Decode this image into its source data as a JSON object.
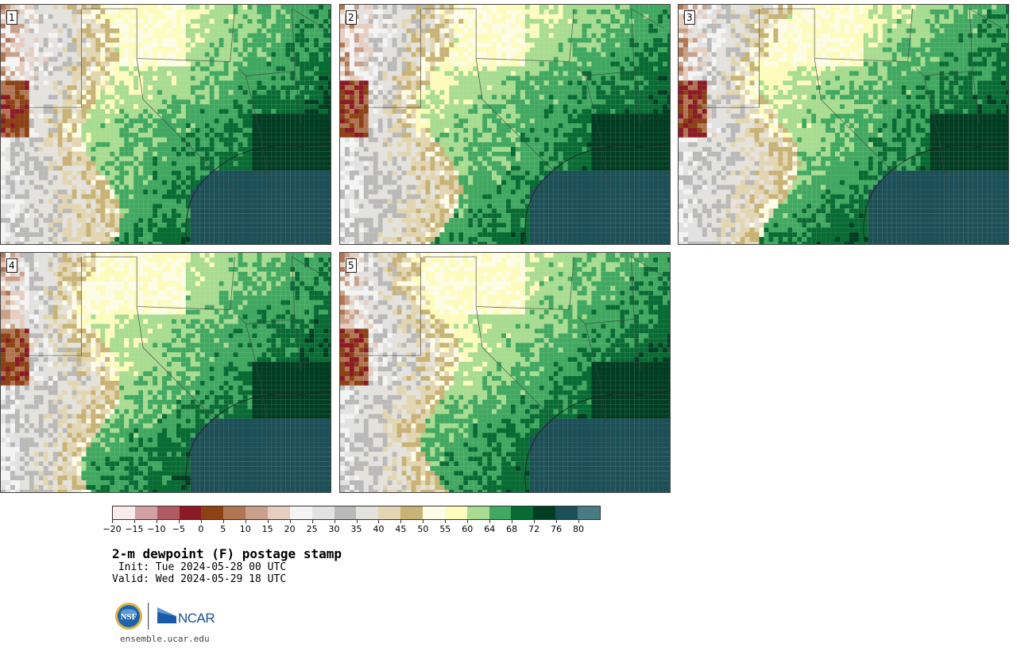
{
  "panels": [
    {
      "label": "1"
    },
    {
      "label": "2"
    },
    {
      "label": "3"
    },
    {
      "label": "4"
    },
    {
      "label": "5"
    }
  ],
  "colorbar": {
    "colors": [
      "#f7ebeb",
      "#d1a1a4",
      "#b05b63",
      "#8c1a26",
      "#8c4214",
      "#b07654",
      "#c9a08a",
      "#e6cdbf",
      "#f4f4f4",
      "#e2e2e2",
      "#b9b9b9",
      "#e4e2dc",
      "#e2d5b1",
      "#c8b276",
      "#fdfce7",
      "#fdfcbc",
      "#a8dc91",
      "#41a861",
      "#086b34",
      "#013d23",
      "#1d4f58",
      "#497b82"
    ],
    "tick_labels": [
      "−20",
      "−15",
      "−10",
      "−5",
      "0",
      "5",
      "10",
      "15",
      "20",
      "25",
      "30",
      "35",
      "40",
      "45",
      "50",
      "55",
      "60",
      "64",
      "68",
      "72",
      "76",
      "80"
    ]
  },
  "title": "2-m dewpoint (F) postage stamp",
  "init": " Init: Tue 2024-05-28 00 UTC",
  "valid": "Valid: Wed 2024-05-29 18 UTC",
  "logos": {
    "nsf": "NSF",
    "ncar": "NCAR"
  },
  "site": "ensemble.ucar.edu"
}
